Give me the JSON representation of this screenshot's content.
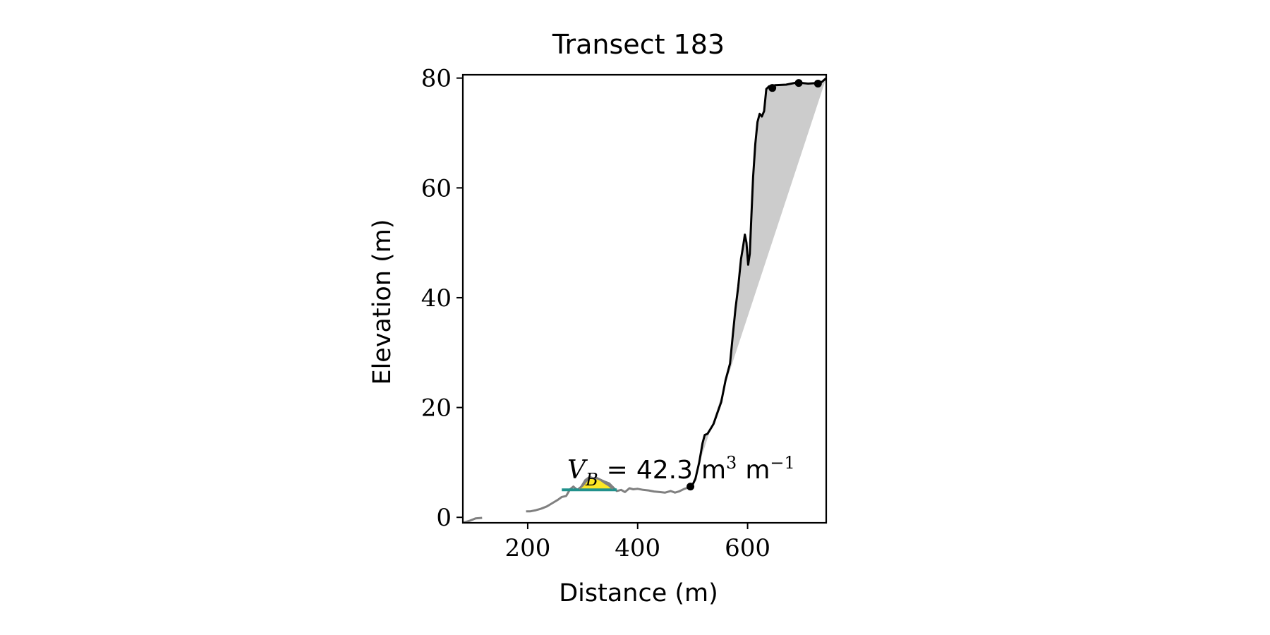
{
  "chart_data": {
    "type": "line",
    "title": "Transect 183",
    "xlabel": "Distance (m)",
    "ylabel": "Elevation (m)",
    "xlim": [
      82,
      743
    ],
    "ylim": [
      -1,
      80.6
    ],
    "xticks": [
      200,
      400,
      600
    ],
    "yticks": [
      0,
      20,
      40,
      60,
      80
    ],
    "grid": false,
    "legend": "none",
    "annotation": {
      "prefix": "V",
      "subscript": "B",
      "equals": "=",
      "value": "42.3",
      "unit": "m",
      "unit_exp": "3",
      "unit2": "m",
      "unit2_exp": "−1"
    },
    "colors": {
      "seaward": "#808080",
      "cliff": "#000000",
      "fill": "#cccccc",
      "dune_fill": "#fde725",
      "base_line": "#21918c"
    },
    "seaward_profile": {
      "segments": [
        [
          [
            82,
            -1.0
          ],
          [
            95,
            -0.6
          ],
          [
            105,
            -0.2
          ],
          [
            117,
            -0.1
          ]
        ],
        [
          [
            197,
            1.1
          ],
          [
            205,
            1.1
          ],
          [
            215,
            1.3
          ],
          [
            225,
            1.6
          ],
          [
            235,
            2.0
          ],
          [
            245,
            2.6
          ],
          [
            255,
            3.2
          ],
          [
            262,
            3.7
          ],
          [
            270,
            3.9
          ],
          [
            277,
            5.1
          ],
          [
            283,
            5.6
          ],
          [
            290,
            5.0
          ],
          [
            297,
            5.5
          ],
          [
            305,
            6.8
          ],
          [
            312,
            7.3
          ],
          [
            318,
            7.0
          ],
          [
            325,
            7.2
          ],
          [
            333,
            6.8
          ],
          [
            340,
            6.5
          ],
          [
            348,
            6.2
          ],
          [
            355,
            5.5
          ],
          [
            362,
            4.8
          ],
          [
            370,
            5.0
          ],
          [
            377,
            4.6
          ],
          [
            385,
            5.3
          ],
          [
            392,
            5.1
          ],
          [
            400,
            5.2
          ],
          [
            410,
            5.0
          ],
          [
            420,
            4.9
          ],
          [
            430,
            4.7
          ],
          [
            440,
            4.6
          ],
          [
            450,
            4.5
          ],
          [
            460,
            4.8
          ],
          [
            468,
            4.5
          ],
          [
            475,
            4.7
          ],
          [
            485,
            5.2
          ],
          [
            495,
            5.5
          ]
        ]
      ]
    },
    "cliff_profile": [
      [
        498,
        5.5
      ],
      [
        505,
        7.0
      ],
      [
        512,
        10.0
      ],
      [
        518,
        13.5
      ],
      [
        522,
        15.0
      ],
      [
        527,
        15.2
      ],
      [
        532,
        16.0
      ],
      [
        538,
        17.0
      ],
      [
        545,
        19.0
      ],
      [
        552,
        21.0
      ],
      [
        560,
        25.0
      ],
      [
        568,
        28.0
      ],
      [
        573,
        33.0
      ],
      [
        578,
        38.0
      ],
      [
        583,
        42.0
      ],
      [
        588,
        47.0
      ],
      [
        592,
        49.5
      ],
      [
        595,
        51.5
      ],
      [
        598,
        50.0
      ],
      [
        601,
        46.0
      ],
      [
        604,
        48.0
      ],
      [
        607,
        55.0
      ],
      [
        610,
        62.0
      ],
      [
        614,
        68.0
      ],
      [
        618,
        72.0
      ],
      [
        622,
        73.5
      ],
      [
        626,
        73.0
      ],
      [
        630,
        74.0
      ],
      [
        634,
        78.0
      ],
      [
        639,
        78.5
      ],
      [
        650,
        78.7
      ],
      [
        670,
        78.8
      ],
      [
        690,
        79.2
      ],
      [
        710,
        79.0
      ],
      [
        725,
        79.1
      ],
      [
        735,
        79.3
      ],
      [
        743,
        80.0
      ]
    ],
    "envelope_line": [
      [
        498,
        5.5
      ],
      [
        743,
        80.0
      ]
    ],
    "cliff_points": [
      [
        496,
        5.6
      ],
      [
        645,
        78.2
      ],
      [
        693,
        79.1
      ],
      [
        728,
        79.0
      ]
    ],
    "dune_fill": [
      [
        293,
        5.2
      ],
      [
        300,
        5.8
      ],
      [
        308,
        6.8
      ],
      [
        314,
        7.3
      ],
      [
        320,
        7.1
      ],
      [
        327,
        7.1
      ],
      [
        333,
        6.8
      ],
      [
        340,
        6.3
      ],
      [
        348,
        5.8
      ],
      [
        355,
        5.2
      ]
    ],
    "dune_base": {
      "x": [
        262,
        362
      ],
      "y": 5.0
    }
  }
}
